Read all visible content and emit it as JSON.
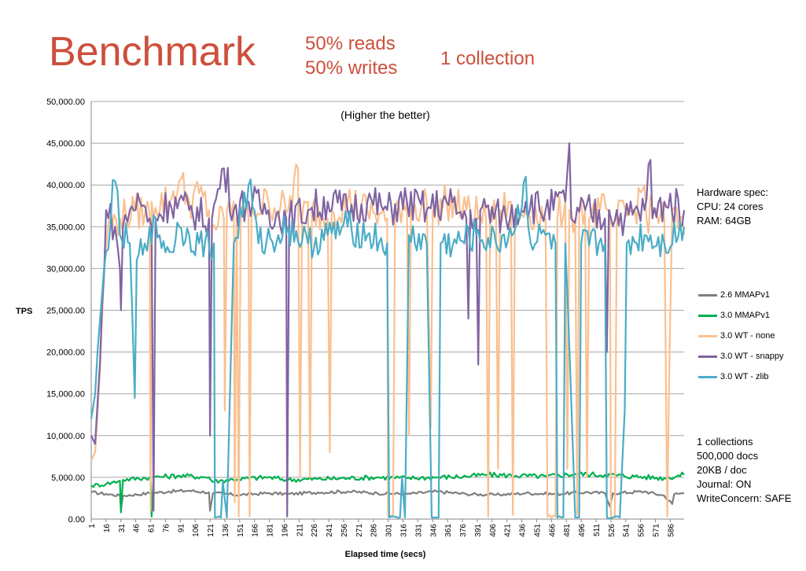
{
  "header": {
    "title": "Benchmark",
    "line1": "50% reads",
    "line2": "50% writes",
    "collection": "1 collection"
  },
  "hardware": {
    "lines": [
      "Hardware spec:",
      "CPU: 24 cores",
      "RAM: 64GB"
    ]
  },
  "config": {
    "lines": [
      "1 collections",
      "500,000 docs",
      "20KB / doc",
      "Journal: ON",
      "WriteConcern: SAFE"
    ]
  },
  "chart_data": {
    "type": "line",
    "annotation": "(Higher the better)",
    "xlabel": "Elapsed time (secs)",
    "ylabel": "TPS",
    "ylim": [
      0,
      50000
    ],
    "xlim": [
      1,
      600
    ],
    "y_ticks": [
      "0.00",
      "5,000.00",
      "10,000.00",
      "15,000.00",
      "20,000.00",
      "25,000.00",
      "30,000.00",
      "35,000.00",
      "40,000.00",
      "45,000.00",
      "50,000.00"
    ],
    "x_ticks": [
      1,
      16,
      31,
      46,
      61,
      76,
      91,
      106,
      121,
      136,
      151,
      166,
      181,
      196,
      211,
      226,
      241,
      256,
      271,
      286,
      301,
      316,
      331,
      346,
      361,
      376,
      391,
      406,
      421,
      436,
      451,
      466,
      481,
      496,
      511,
      526,
      541,
      556,
      571,
      586
    ],
    "grid": "horizontal",
    "legend_position": "right",
    "series": [
      {
        "name": "2.6 MMAPv1",
        "color": "#7f7f7f",
        "points": [
          [
            1,
            3200
          ],
          [
            16,
            3000
          ],
          [
            30,
            2800
          ],
          [
            31,
            1200
          ],
          [
            33,
            2800
          ],
          [
            60,
            3100
          ],
          [
            80,
            3300
          ],
          [
            100,
            3400
          ],
          [
            120,
            3200
          ],
          [
            121,
            1000
          ],
          [
            124,
            3100
          ],
          [
            150,
            2900
          ],
          [
            180,
            3100
          ],
          [
            200,
            3000
          ],
          [
            230,
            3200
          ],
          [
            260,
            3300
          ],
          [
            290,
            3100
          ],
          [
            320,
            3000
          ],
          [
            350,
            3300
          ],
          [
            380,
            3000
          ],
          [
            410,
            2900
          ],
          [
            440,
            3100
          ],
          [
            470,
            3000
          ],
          [
            500,
            3200
          ],
          [
            520,
            3100
          ],
          [
            525,
            1500
          ],
          [
            528,
            3100
          ],
          [
            560,
            3300
          ],
          [
            580,
            2800
          ],
          [
            588,
            1800
          ],
          [
            590,
            3000
          ],
          [
            600,
            3100
          ]
        ]
      },
      {
        "name": "3.0 MMAPv1",
        "color": "#00b050",
        "points": [
          [
            1,
            4000
          ],
          [
            16,
            4200
          ],
          [
            30,
            4600
          ],
          [
            31,
            800
          ],
          [
            33,
            4700
          ],
          [
            60,
            5000
          ],
          [
            61,
            4800
          ],
          [
            62,
            300
          ],
          [
            64,
            5000
          ],
          [
            90,
            5200
          ],
          [
            120,
            5000
          ],
          [
            123,
            4500
          ],
          [
            150,
            4800
          ],
          [
            180,
            5000
          ],
          [
            200,
            4700
          ],
          [
            230,
            4800
          ],
          [
            260,
            4900
          ],
          [
            290,
            5000
          ],
          [
            320,
            4900
          ],
          [
            350,
            5000
          ],
          [
            380,
            5100
          ],
          [
            400,
            5300
          ],
          [
            430,
            5200
          ],
          [
            460,
            5100
          ],
          [
            490,
            5400
          ],
          [
            520,
            5300
          ],
          [
            550,
            5100
          ],
          [
            580,
            4900
          ],
          [
            600,
            5300
          ]
        ]
      },
      {
        "name": "3.0 WT - none",
        "color": "#fac090",
        "points": [
          [
            1,
            7000
          ],
          [
            5,
            8000
          ],
          [
            10,
            18000
          ],
          [
            14,
            30000
          ],
          [
            18,
            35000
          ],
          [
            30,
            36000
          ],
          [
            45,
            37000
          ],
          [
            60,
            36500
          ],
          [
            61,
            1000
          ],
          [
            62,
            38000
          ],
          [
            80,
            38000
          ],
          [
            90,
            40500
          ],
          [
            100,
            38000
          ],
          [
            110,
            39000
          ],
          [
            120,
            37000
          ],
          [
            121,
            15000
          ],
          [
            123,
            35000
          ],
          [
            135,
            36000
          ],
          [
            136,
            13000
          ],
          [
            138,
            37000
          ],
          [
            145,
            38000
          ],
          [
            146,
            2000
          ],
          [
            148,
            36000
          ],
          [
            150,
            300
          ],
          [
            152,
            37000
          ],
          [
            160,
            36000
          ],
          [
            161,
            300
          ],
          [
            163,
            37000
          ],
          [
            180,
            38000
          ],
          [
            200,
            37000
          ],
          [
            210,
            42000
          ],
          [
            212,
            5000
          ],
          [
            214,
            36000
          ],
          [
            220,
            38000
          ],
          [
            222,
            5000
          ],
          [
            224,
            37000
          ],
          [
            240,
            36000
          ],
          [
            242,
            8000
          ],
          [
            244,
            37000
          ],
          [
            260,
            38000
          ],
          [
            280,
            37000
          ],
          [
            300,
            36000
          ],
          [
            301,
            300
          ],
          [
            306,
            300
          ],
          [
            308,
            37000
          ],
          [
            320,
            38000
          ],
          [
            322,
            10000
          ],
          [
            324,
            37000
          ],
          [
            340,
            38000
          ],
          [
            344,
            11000
          ],
          [
            346,
            37000
          ],
          [
            360,
            38000
          ],
          [
            380,
            37000
          ],
          [
            400,
            36000
          ],
          [
            402,
            300
          ],
          [
            404,
            37000
          ],
          [
            410,
            36000
          ],
          [
            412,
            6000
          ],
          [
            414,
            37000
          ],
          [
            425,
            38000
          ],
          [
            427,
            500
          ],
          [
            429,
            36000
          ],
          [
            440,
            37000
          ],
          [
            460,
            36000
          ],
          [
            462,
            300
          ],
          [
            470,
            300
          ],
          [
            472,
            36000
          ],
          [
            480,
            38000
          ],
          [
            482,
            6000
          ],
          [
            484,
            37000
          ],
          [
            490,
            36000
          ],
          [
            492,
            500
          ],
          [
            494,
            37000
          ],
          [
            500,
            37000
          ],
          [
            502,
            5000
          ],
          [
            504,
            36000
          ],
          [
            515,
            37000
          ],
          [
            525,
            37000
          ],
          [
            526,
            200
          ],
          [
            530,
            200
          ],
          [
            532,
            36000
          ],
          [
            550,
            37000
          ],
          [
            560,
            40000
          ],
          [
            562,
            36000
          ],
          [
            570,
            37000
          ],
          [
            580,
            36000
          ],
          [
            583,
            300
          ],
          [
            585,
            18000
          ],
          [
            588,
            37000
          ],
          [
            600,
            34000
          ]
        ]
      },
      {
        "name": "3.0 WT - snappy",
        "color": "#8064a2",
        "points": [
          [
            1,
            10000
          ],
          [
            5,
            9000
          ],
          [
            10,
            19000
          ],
          [
            16,
            37000
          ],
          [
            25,
            35000
          ],
          [
            30,
            30000
          ],
          [
            31,
            25000
          ],
          [
            33,
            35000
          ],
          [
            40,
            37000
          ],
          [
            50,
            38000
          ],
          [
            60,
            36000
          ],
          [
            62,
            35000
          ],
          [
            64,
            1000
          ],
          [
            66,
            36000
          ],
          [
            80,
            38000
          ],
          [
            100,
            37000
          ],
          [
            120,
            36000
          ],
          [
            121,
            10000
          ],
          [
            123,
            36000
          ],
          [
            135,
            42000
          ],
          [
            145,
            37000
          ],
          [
            160,
            38000
          ],
          [
            180,
            37000
          ],
          [
            198,
            36000
          ],
          [
            199,
            300
          ],
          [
            201,
            36000
          ],
          [
            220,
            37000
          ],
          [
            240,
            38000
          ],
          [
            260,
            37000
          ],
          [
            280,
            38000
          ],
          [
            300,
            37000
          ],
          [
            320,
            38000
          ],
          [
            340,
            37000
          ],
          [
            360,
            38000
          ],
          [
            380,
            36000
          ],
          [
            382,
            24000
          ],
          [
            384,
            37000
          ],
          [
            390,
            36000
          ],
          [
            392,
            18500
          ],
          [
            394,
            37000
          ],
          [
            420,
            36000
          ],
          [
            440,
            38000
          ],
          [
            460,
            37000
          ],
          [
            480,
            38000
          ],
          [
            484,
            45000
          ],
          [
            486,
            36000
          ],
          [
            500,
            37000
          ],
          [
            520,
            36000
          ],
          [
            522,
            20000
          ],
          [
            524,
            37000
          ],
          [
            540,
            36000
          ],
          [
            560,
            37000
          ],
          [
            566,
            43000
          ],
          [
            568,
            36000
          ],
          [
            580,
            38000
          ],
          [
            600,
            37000
          ]
        ]
      },
      {
        "name": "3.0 WT - zlib",
        "color": "#4bacc6",
        "points": [
          [
            1,
            12000
          ],
          [
            5,
            15000
          ],
          [
            10,
            24000
          ],
          [
            16,
            32000
          ],
          [
            25,
            40500
          ],
          [
            30,
            34000
          ],
          [
            40,
            33000
          ],
          [
            45,
            14500
          ],
          [
            47,
            31000
          ],
          [
            55,
            33000
          ],
          [
            60,
            35000
          ],
          [
            70,
            34000
          ],
          [
            80,
            32000
          ],
          [
            90,
            35000
          ],
          [
            100,
            34000
          ],
          [
            110,
            33000
          ],
          [
            125,
            33000
          ],
          [
            126,
            200
          ],
          [
            132,
            200
          ],
          [
            134,
            4500
          ],
          [
            138,
            200
          ],
          [
            145,
            33000
          ],
          [
            160,
            40000
          ],
          [
            170,
            33000
          ],
          [
            190,
            34000
          ],
          [
            200,
            35000
          ],
          [
            220,
            33000
          ],
          [
            240,
            34000
          ],
          [
            260,
            35000
          ],
          [
            280,
            34000
          ],
          [
            300,
            33000
          ],
          [
            302,
            200
          ],
          [
            313,
            200
          ],
          [
            315,
            5000
          ],
          [
            318,
            200
          ],
          [
            322,
            34000
          ],
          [
            340,
            33000
          ],
          [
            345,
            200
          ],
          [
            352,
            200
          ],
          [
            354,
            33000
          ],
          [
            370,
            33000
          ],
          [
            390,
            34000
          ],
          [
            410,
            33000
          ],
          [
            430,
            35000
          ],
          [
            440,
            41000
          ],
          [
            445,
            33000
          ],
          [
            460,
            34000
          ],
          [
            470,
            33000
          ],
          [
            472,
            200
          ],
          [
            478,
            200
          ],
          [
            480,
            33000
          ],
          [
            490,
            200
          ],
          [
            494,
            200
          ],
          [
            496,
            33000
          ],
          [
            520,
            33000
          ],
          [
            522,
            200
          ],
          [
            535,
            200
          ],
          [
            540,
            13000
          ],
          [
            542,
            33000
          ],
          [
            560,
            34000
          ],
          [
            580,
            33000
          ],
          [
            600,
            35000
          ]
        ]
      }
    ]
  }
}
